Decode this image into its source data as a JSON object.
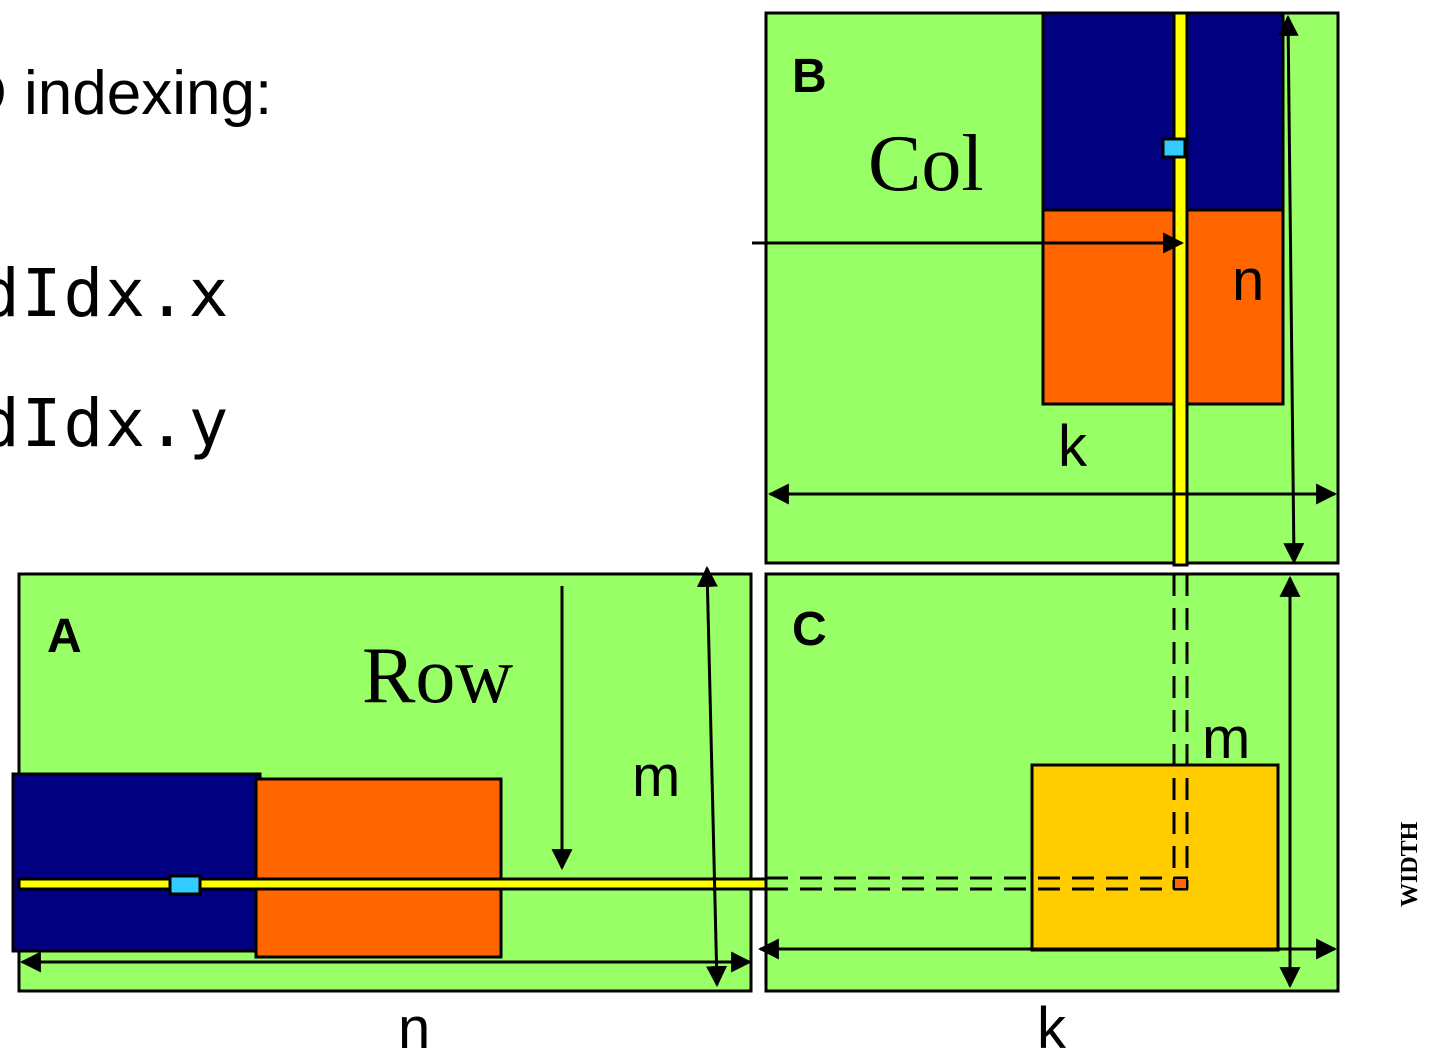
{
  "heading": "D indexing:",
  "code_lines": [
    "dIdx.x",
    "dIdx.y"
  ],
  "matrices": {
    "a": {
      "label": "A",
      "dim_horizontal": "n",
      "dim_vertical": "m",
      "index_label": "Row"
    },
    "b": {
      "label": "B",
      "dim_horizontal": "k",
      "dim_vertical": "n",
      "index_label": "Col"
    },
    "c": {
      "label": "C",
      "dim_horizontal": "k",
      "dim_vertical": "m"
    }
  },
  "side_label": "WIDTH",
  "colors": {
    "matrix_fill": "#99ff66",
    "tile_dark": "#000080",
    "tile_orange": "#ff6600",
    "tile_result": "#ffcc00",
    "highlight_line": "#ffff00",
    "element_marker": "#33ccff"
  }
}
